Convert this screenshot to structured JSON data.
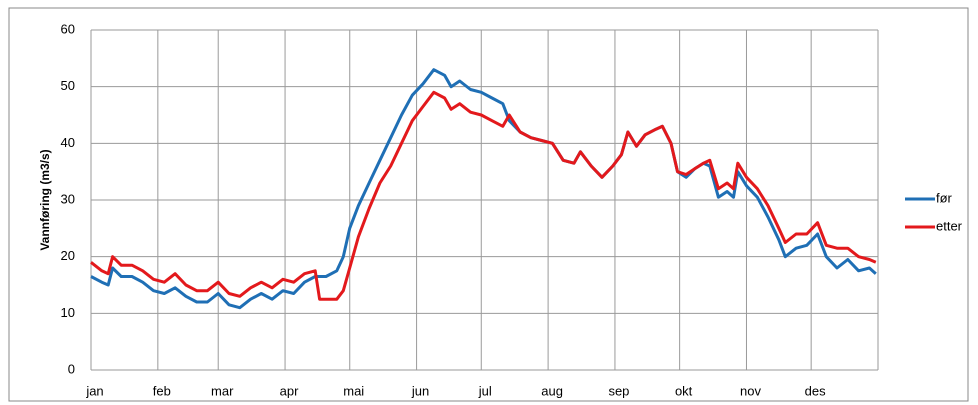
{
  "chart_data": {
    "type": "line",
    "y_label": "Vannføring (m3/s)",
    "x": [
      1,
      6,
      9,
      11,
      15,
      20,
      25,
      30,
      35,
      40,
      45,
      50,
      55,
      60,
      65,
      70,
      75,
      80,
      85,
      90,
      95,
      100,
      105,
      107,
      110,
      115,
      118,
      121,
      125,
      130,
      135,
      140,
      145,
      150,
      155,
      160,
      165,
      168,
      172,
      177,
      182,
      187,
      192,
      195,
      200,
      205,
      210,
      215,
      220,
      225,
      228,
      233,
      238,
      243,
      247,
      250,
      254,
      258,
      263,
      266,
      270,
      273,
      277,
      281,
      285,
      288,
      292,
      296,
      299,
      301,
      305,
      310,
      315,
      320,
      323,
      328,
      333,
      338,
      342,
      347,
      352,
      357,
      362,
      365
    ],
    "series": [
      {
        "name": "før",
        "color": "#1f6fb5",
        "values": [
          16.5,
          15.5,
          15,
          18,
          16.5,
          16.5,
          15.5,
          14,
          13.5,
          14.5,
          13,
          12,
          12,
          13.5,
          11.5,
          11,
          12.5,
          13.5,
          12.5,
          14,
          13.5,
          15.5,
          16.5,
          16.5,
          16.5,
          17.5,
          20,
          25,
          29,
          33,
          37,
          41,
          45,
          48.5,
          50.5,
          53,
          52,
          50,
          51,
          49.5,
          49,
          48,
          47,
          44,
          42,
          41,
          40.5,
          40,
          37,
          36.5,
          38.5,
          36,
          34,
          36,
          38,
          42,
          39.5,
          41.5,
          42.5,
          43,
          40,
          35,
          34,
          35.5,
          36.5,
          36,
          30.5,
          31.5,
          30.5,
          35,
          32.5,
          30.5,
          27,
          23,
          20,
          21.5,
          22,
          24,
          20,
          18,
          19.5,
          17.5,
          18,
          17
        ]
      },
      {
        "name": "etter",
        "color": "#e3191c",
        "values": [
          19,
          17.5,
          17,
          20,
          18.5,
          18.5,
          17.5,
          16,
          15.5,
          17,
          15,
          14,
          14,
          15.5,
          13.5,
          13,
          14.5,
          15.5,
          14.5,
          16,
          15.5,
          17,
          17.5,
          12.5,
          12.5,
          12.5,
          14,
          18,
          23.5,
          28.5,
          33,
          36,
          40,
          44,
          46.5,
          49,
          48,
          46,
          47,
          45.5,
          45,
          44,
          43,
          45,
          42,
          41,
          40.5,
          40,
          37,
          36.5,
          38.5,
          36,
          34,
          36,
          38,
          42,
          39.5,
          41.5,
          42.5,
          43,
          40,
          35,
          34.5,
          35.5,
          36.5,
          37,
          32,
          33,
          32,
          36.5,
          34,
          32,
          29,
          25,
          22.5,
          24,
          24,
          26,
          22,
          21.5,
          21.5,
          20,
          19.5,
          19
        ]
      }
    ],
    "xlim": [
      1,
      366
    ],
    "xticks": [
      {
        "value": 1,
        "label": "jan"
      },
      {
        "value": 32,
        "label": "feb"
      },
      {
        "value": 60,
        "label": "mar"
      },
      {
        "value": 91,
        "label": "apr"
      },
      {
        "value": 121,
        "label": "mai"
      },
      {
        "value": 152,
        "label": "jun"
      },
      {
        "value": 182,
        "label": "jul"
      },
      {
        "value": 213,
        "label": "aug"
      },
      {
        "value": 244,
        "label": "sep"
      },
      {
        "value": 274,
        "label": "okt"
      },
      {
        "value": 305,
        "label": "nov"
      },
      {
        "value": 335,
        "label": "des"
      }
    ],
    "ylim": [
      0,
      60
    ],
    "yticks": [
      0,
      10,
      20,
      30,
      40,
      50,
      60
    ],
    "grid": true,
    "legend": "right"
  }
}
